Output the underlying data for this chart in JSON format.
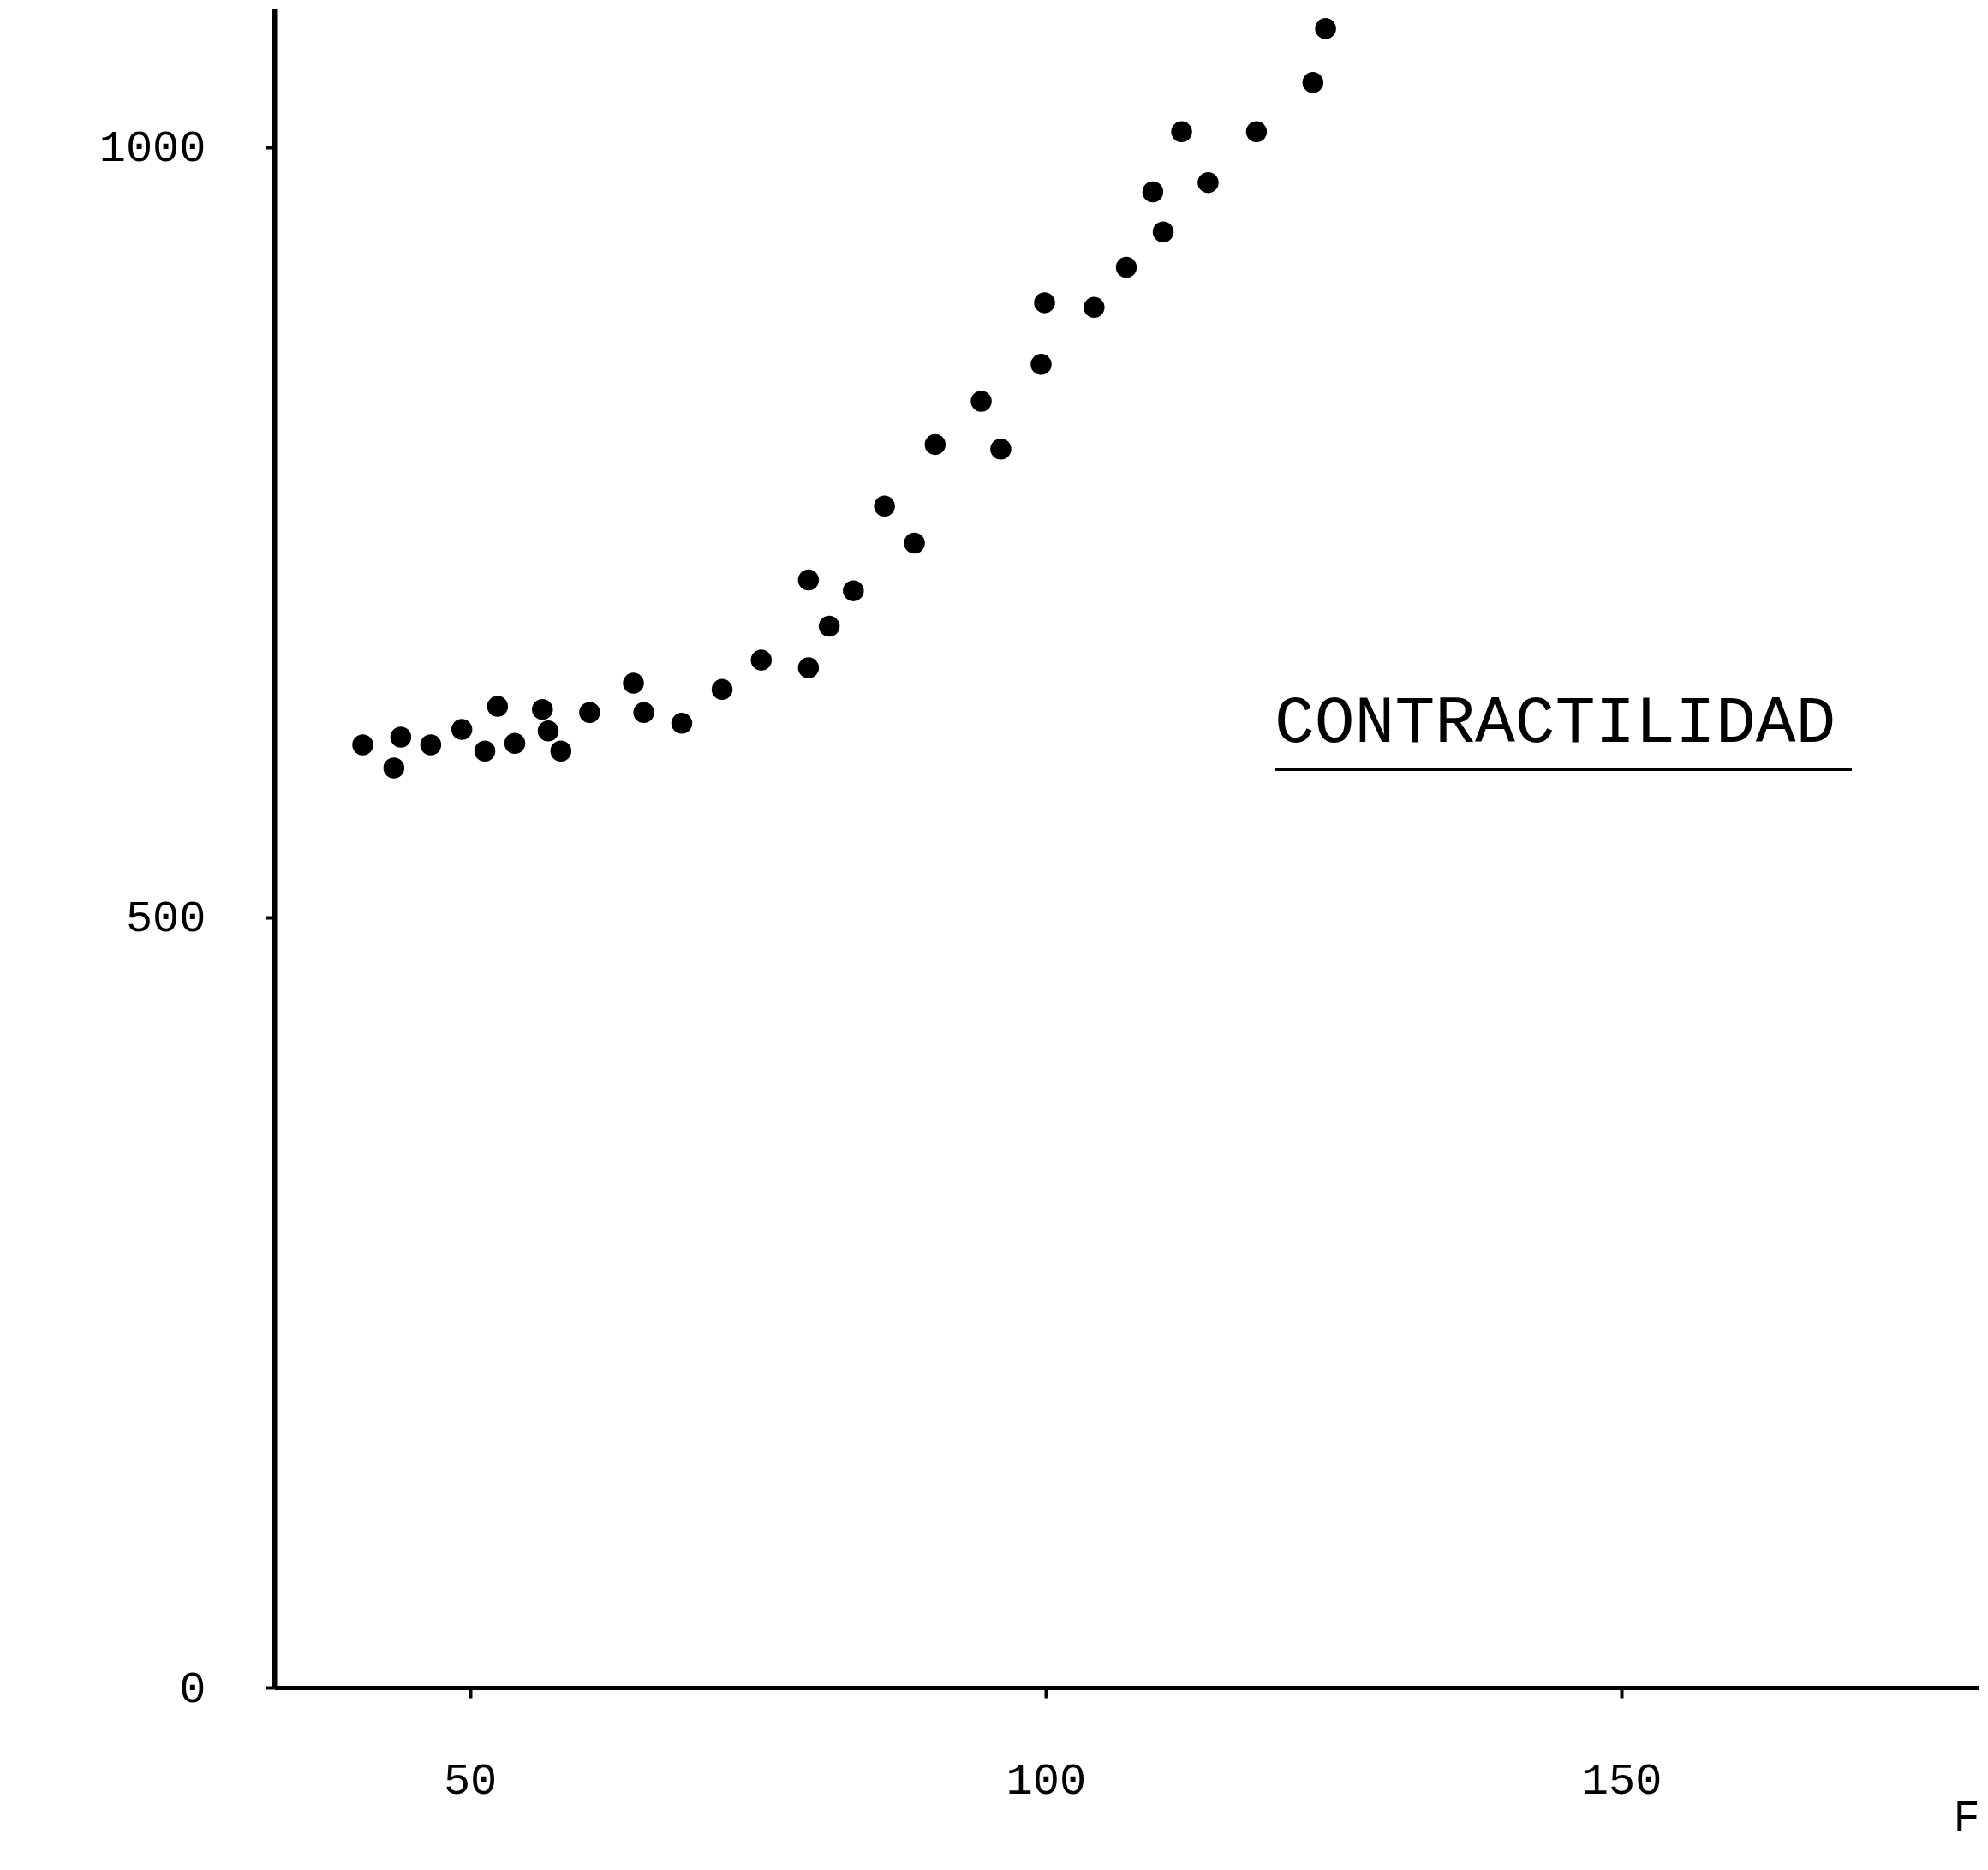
{
  "chart_data": {
    "type": "scatter",
    "xlabel": "F",
    "annotations": [
      "CONTRACTILIDAD"
    ],
    "x": [
      40.7,
      43.4,
      44.0,
      46.6,
      49.3,
      51.3,
      52.4,
      53.9,
      56.3,
      56.8,
      57.9,
      60.4,
      64.2,
      65.1,
      68.4,
      71.9,
      75.3,
      79.4,
      79.4,
      81.2,
      83.3,
      86.0,
      88.6,
      90.4,
      94.4,
      96.1,
      99.6,
      99.9,
      104.2,
      107.0,
      109.3,
      110.2,
      111.8,
      114.1,
      118.3,
      123.2,
      124.3
    ],
    "series": [
      {
        "color": "#000000",
        "values": [
          612,
          597,
          617,
          612,
          622,
          608,
          637,
          613,
          635,
          621,
          608,
          633,
          652,
          633,
          626,
          648,
          667,
          662,
          719,
          689,
          712,
          767,
          743,
          807,
          835,
          804,
          859,
          899,
          896,
          922,
          971,
          945,
          1010,
          977,
          1010,
          1042,
          1077
        ]
      }
    ],
    "xlim": [
      33,
      181
    ],
    "ylim": [
      0,
      1090
    ],
    "xticks": [
      50,
      100,
      150
    ],
    "yticks": [
      0,
      500,
      1000
    ],
    "marker": "circle"
  }
}
